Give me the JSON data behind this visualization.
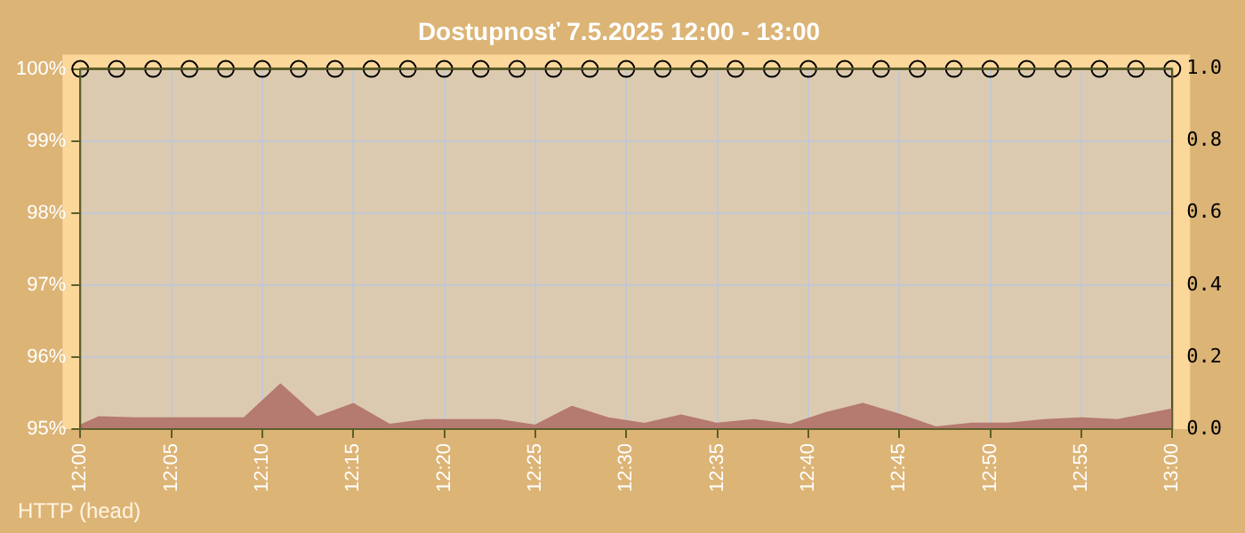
{
  "chart_data": {
    "type": "line",
    "title": "Dostupnosť 7.5.2025 12:00 - 13:00",
    "annotations": [
      "HTTP (head)"
    ],
    "xlim": [
      12,
      13
    ],
    "xticks": [
      {
        "value": 12,
        "label": "12:00"
      },
      {
        "value": 12.0833,
        "label": "12:05"
      },
      {
        "value": 12.1667,
        "label": "12:10"
      },
      {
        "value": 12.25,
        "label": "12:15"
      },
      {
        "value": 12.3333,
        "label": "12:20"
      },
      {
        "value": 12.4167,
        "label": "12:25"
      },
      {
        "value": 12.5,
        "label": "12:30"
      },
      {
        "value": 12.5833,
        "label": "12:35"
      },
      {
        "value": 12.6667,
        "label": "12:40"
      },
      {
        "value": 12.75,
        "label": "12:45"
      },
      {
        "value": 12.8333,
        "label": "12:50"
      },
      {
        "value": 12.9167,
        "label": "12:55"
      },
      {
        "value": 13,
        "label": "13:00"
      }
    ],
    "ylim": [
      95,
      100
    ],
    "yticks": [
      {
        "value": 95,
        "label": "95%"
      },
      {
        "value": 96,
        "label": "96%"
      },
      {
        "value": 97,
        "label": "97%"
      },
      {
        "value": 98,
        "label": "98%"
      },
      {
        "value": 99,
        "label": "99%"
      },
      {
        "value": 100,
        "label": "100%"
      }
    ],
    "y2lim": [
      0,
      1
    ],
    "y2ticks": [
      {
        "value": 0,
        "label": "0.0"
      },
      {
        "value": 0.2,
        "label": "0.2"
      },
      {
        "value": 0.4,
        "label": "0.4"
      },
      {
        "value": 0.6,
        "label": "0.6"
      },
      {
        "value": 0.8,
        "label": "0.8"
      },
      {
        "value": 1,
        "label": "1.0"
      }
    ],
    "grid": true,
    "legend": false,
    "line_style": "solid",
    "series": [
      {
        "type": "area",
        "axis": "y2",
        "color": "#b57a70",
        "x": [
          12,
          12.0167,
          12.05,
          12.0833,
          12.1167,
          12.15,
          12.1833,
          12.2167,
          12.25,
          12.2833,
          12.3167,
          12.35,
          12.3833,
          12.4167,
          12.45,
          12.4833,
          12.5167,
          12.55,
          12.5833,
          12.6167,
          12.65,
          12.6833,
          12.7167,
          12.75,
          12.7833,
          12.8167,
          12.85,
          12.8833,
          12.9167,
          12.95,
          12.9833,
          13
        ],
        "values": [
          0.01,
          0.033,
          0.03,
          0.03,
          0.03,
          0.03,
          0.124,
          0.033,
          0.07,
          0.012,
          0.025,
          0.025,
          0.025,
          0.01,
          0.062,
          0.03,
          0.015,
          0.038,
          0.015,
          0.025,
          0.012,
          0.045,
          0.07,
          0.04,
          0.005,
          0.015,
          0.015,
          0.025,
          0.03,
          0.025,
          0.045,
          0.055
        ]
      },
      {
        "type": "line",
        "axis": "y",
        "color": "#5e5e2a",
        "marker": "circle",
        "x": [
          12,
          12.0333,
          12.0667,
          12.1,
          12.1333,
          12.1667,
          12.2,
          12.2333,
          12.2667,
          12.3,
          12.3333,
          12.3667,
          12.4,
          12.4333,
          12.4667,
          12.5,
          12.5333,
          12.5667,
          12.6,
          12.6333,
          12.6667,
          12.7,
          12.7333,
          12.7667,
          12.8,
          12.8333,
          12.8667,
          12.9,
          12.9333,
          12.9667,
          13
        ],
        "values": [
          100,
          100,
          100,
          100,
          100,
          100,
          100,
          100,
          100,
          100,
          100,
          100,
          100,
          100,
          100,
          100,
          100,
          100,
          100,
          100,
          100,
          100,
          100,
          100,
          100,
          100,
          100,
          100,
          100,
          100,
          100
        ]
      }
    ]
  }
}
